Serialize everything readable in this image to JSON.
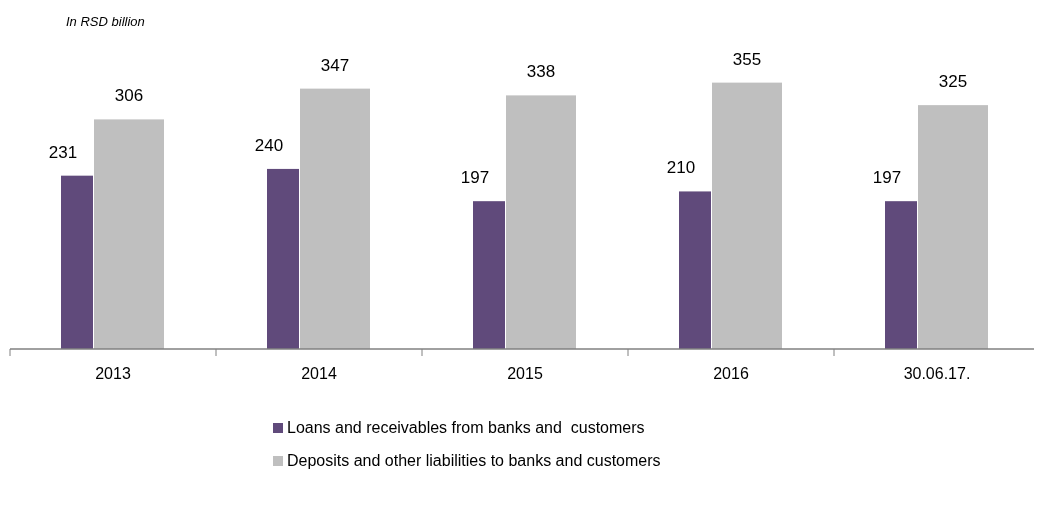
{
  "chart_data": {
    "type": "bar",
    "ylabel": "In RSD billion",
    "categories": [
      "2013",
      "2014",
      "2015",
      "2016",
      "30.06.17."
    ],
    "series": [
      {
        "name": "Loans and receivables from banks and  customers",
        "color": "#604a7b",
        "values": [
          231,
          240,
          197,
          210,
          197
        ]
      },
      {
        "name": "Deposits and other liabilities to banks and customers",
        "color": "#bfbfbf",
        "values": [
          306,
          347,
          338,
          355,
          325
        ]
      }
    ],
    "data_labels": true,
    "legend": "bottom"
  }
}
